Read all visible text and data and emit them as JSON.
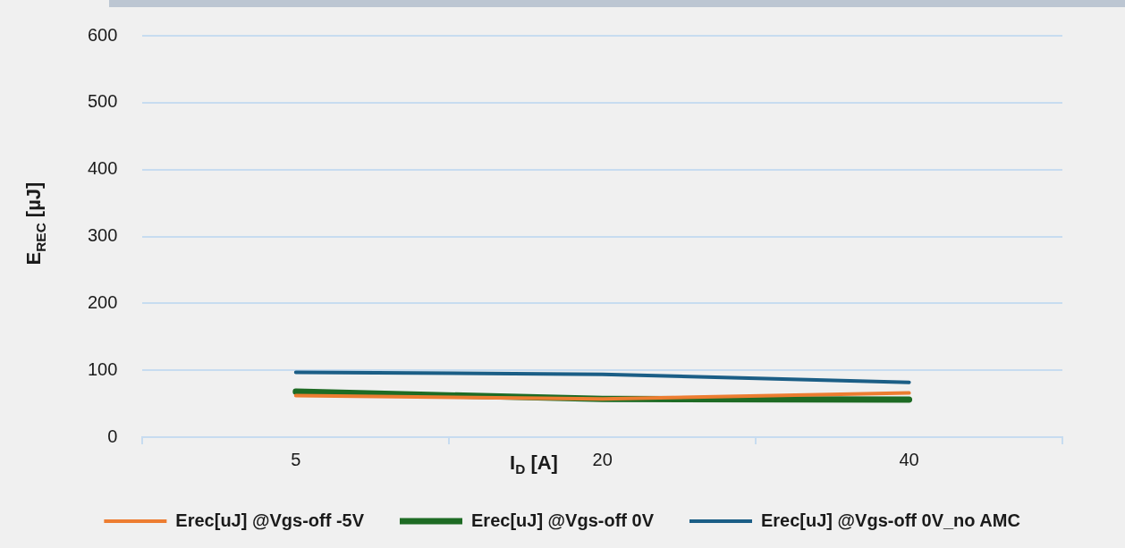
{
  "chart_data": {
    "type": "line",
    "xlabel": "I$_{D}$ [A]",
    "ylabel": "E$_{REC}$ [µJ]",
    "categories": [
      "5",
      "20",
      "40"
    ],
    "series": [
      {
        "name": "Erec[uJ] @Vgs-off -5V",
        "color": "#ed7d31",
        "values": [
          62,
          57,
          66
        ]
      },
      {
        "name": "Erec[uJ] @Vgs-off 0V",
        "color": "#1e6b24",
        "values": [
          68,
          57,
          56
        ]
      },
      {
        "name": "Erec[uJ] @Vgs-off 0V_no AMC",
        "color": "#1b5e86",
        "values": [
          97,
          94,
          82
        ]
      }
    ],
    "ylim": [
      0,
      600
    ],
    "yticks": [
      0,
      100,
      200,
      300,
      400,
      500,
      600
    ],
    "grid": "y",
    "legend": "bottom",
    "marker": "none",
    "line_style": "solid"
  }
}
